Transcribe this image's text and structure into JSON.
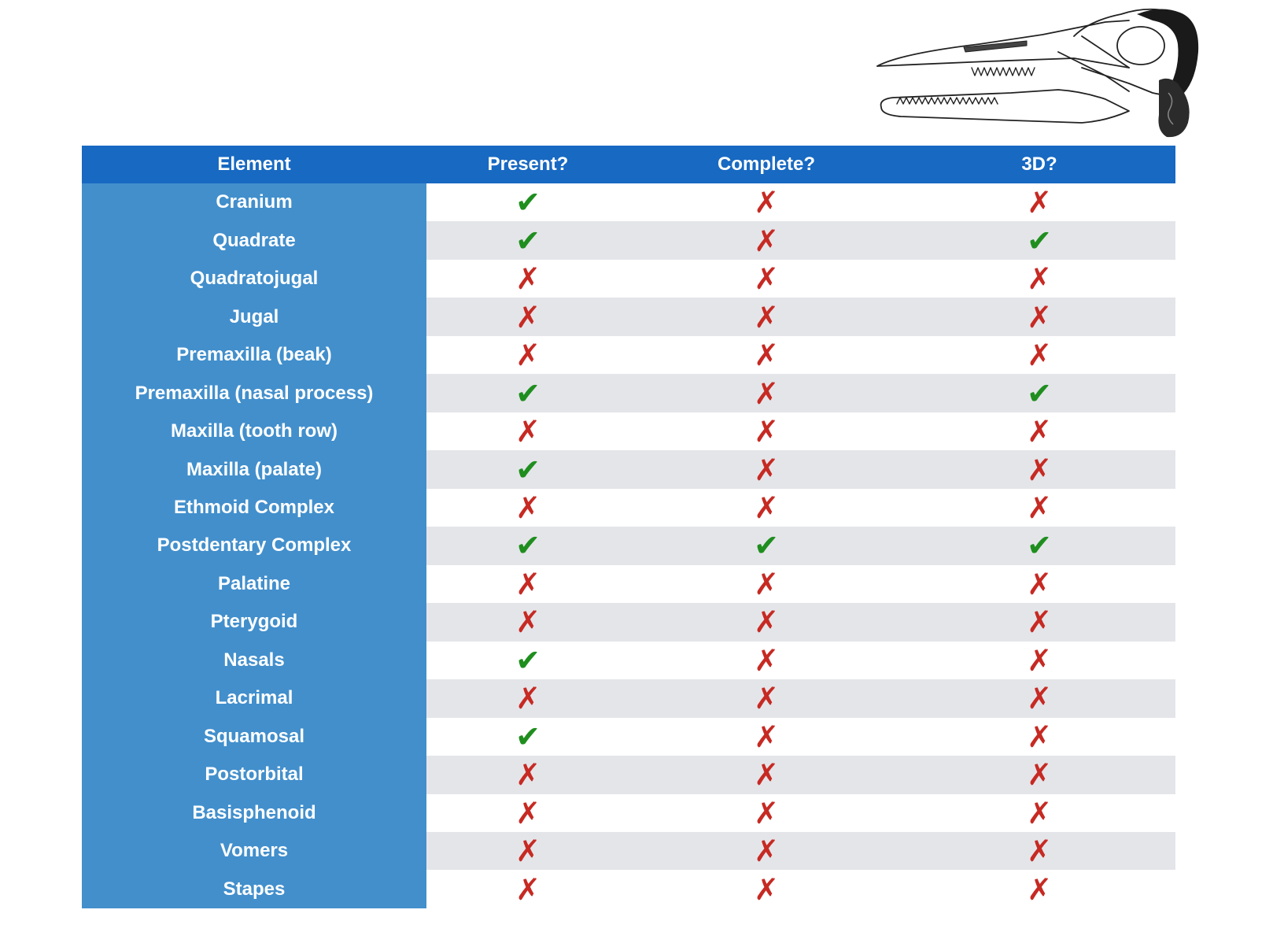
{
  "header": {
    "element": "Element",
    "present": "Present?",
    "complete": "Complete?",
    "three_d": "3D?"
  },
  "symbols": {
    "yes": "✔",
    "no": "✗"
  },
  "colors": {
    "header_bg": "#1769c2",
    "name_col_bg": "#428fcc",
    "alt_row_bg": "#e4e5e9",
    "check": "#1f8e1f",
    "cross": "#c62a23"
  },
  "rows": [
    {
      "name": "Cranium",
      "present": true,
      "complete": false,
      "three_d": false
    },
    {
      "name": "Quadrate",
      "present": true,
      "complete": false,
      "three_d": true
    },
    {
      "name": "Quadratojugal",
      "present": false,
      "complete": false,
      "three_d": false
    },
    {
      "name": "Jugal",
      "present": false,
      "complete": false,
      "three_d": false
    },
    {
      "name": "Premaxilla (beak)",
      "present": false,
      "complete": false,
      "three_d": false
    },
    {
      "name": "Premaxilla (nasal process)",
      "present": true,
      "complete": false,
      "three_d": true
    },
    {
      "name": "Maxilla (tooth row)",
      "present": false,
      "complete": false,
      "three_d": false
    },
    {
      "name": "Maxilla (palate)",
      "present": true,
      "complete": false,
      "three_d": false
    },
    {
      "name": "Ethmoid Complex",
      "present": false,
      "complete": false,
      "three_d": false
    },
    {
      "name": "Postdentary Complex",
      "present": true,
      "complete": true,
      "three_d": true
    },
    {
      "name": "Palatine",
      "present": false,
      "complete": false,
      "three_d": false
    },
    {
      "name": "Pterygoid",
      "present": false,
      "complete": false,
      "three_d": false
    },
    {
      "name": "Nasals",
      "present": true,
      "complete": false,
      "three_d": false
    },
    {
      "name": "Lacrimal",
      "present": false,
      "complete": false,
      "three_d": false
    },
    {
      "name": "Squamosal",
      "present": true,
      "complete": false,
      "three_d": false
    },
    {
      "name": "Postorbital",
      "present": false,
      "complete": false,
      "three_d": false
    },
    {
      "name": "Basisphenoid",
      "present": false,
      "complete": false,
      "three_d": false
    },
    {
      "name": "Vomers",
      "present": false,
      "complete": false,
      "three_d": false
    },
    {
      "name": "Stapes",
      "present": false,
      "complete": false,
      "three_d": false
    }
  ]
}
